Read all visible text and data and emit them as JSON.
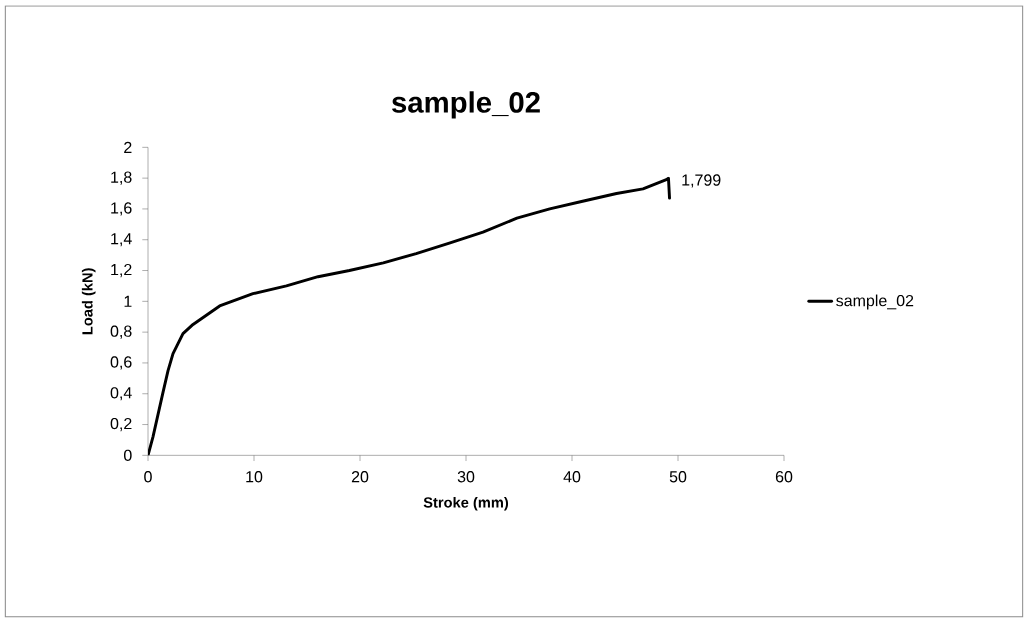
{
  "chart_data": {
    "type": "line",
    "title": "sample_02",
    "xlabel": "Stroke (mm)",
    "ylabel": "Load (kN)",
    "series": [
      {
        "name": "sample_02",
        "color": "#000000",
        "x": [
          0,
          0.47,
          1.42,
          1.89,
          2.36,
          3.3,
          4.25,
          6.76,
          9.9,
          13.06,
          16.04,
          19.0,
          22.2,
          25.3,
          28.5,
          31.6,
          34.8,
          37.9,
          41.0,
          44.2,
          46.7,
          48.9,
          49.1,
          49.2
        ],
        "values": [
          0,
          0.12,
          0.41,
          0.55,
          0.66,
          0.79,
          0.85,
          0.97,
          1.05,
          1.1,
          1.16,
          1.2,
          1.25,
          1.31,
          1.38,
          1.45,
          1.54,
          1.6,
          1.65,
          1.7,
          1.73,
          1.79,
          1.799,
          1.67
        ]
      }
    ],
    "annotations": [
      {
        "text": "1,799",
        "x": 49.1,
        "y": 1.799
      }
    ],
    "xlim": [
      0,
      60
    ],
    "ylim": [
      0,
      2
    ],
    "xticks": [
      0,
      10,
      20,
      30,
      40,
      50,
      60
    ],
    "yticks": [
      0,
      {
        "value": 0.2,
        "label": "0,2"
      },
      {
        "value": 0.4,
        "label": "0,4"
      },
      {
        "value": 0.6,
        "label": "0,6"
      },
      {
        "value": 0.8,
        "label": "0,8"
      },
      1,
      {
        "value": 1.2,
        "label": "1,2"
      },
      {
        "value": 1.4,
        "label": "1,4"
      },
      {
        "value": 1.6,
        "label": "1,6"
      },
      {
        "value": 1.8,
        "label": "1,8"
      },
      2
    ],
    "legend": "right",
    "grid": false,
    "marker": "none",
    "line_style": "solid"
  }
}
